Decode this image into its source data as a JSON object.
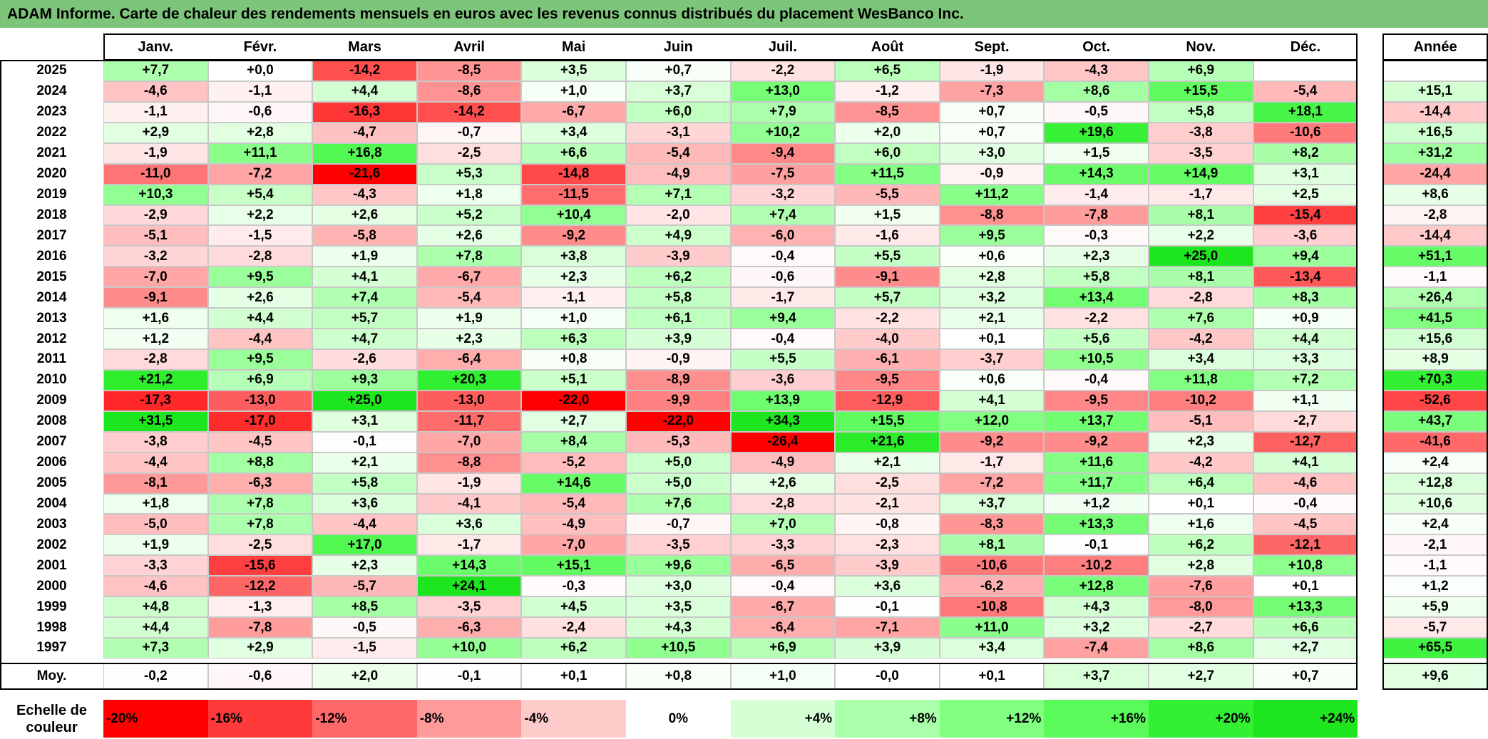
{
  "title": "ADAM Informe. Carte de chaleur des rendements mensuels en euros avec les revenus connus distribués du placement WesBanco Inc.",
  "chart_data": {
    "type": "heatmap",
    "title": "ADAM Informe. Carte de chaleur des rendements mensuels en euros avec les revenus connus distribués du placement WesBanco Inc.",
    "months": [
      "Janv.",
      "Févr.",
      "Mars",
      "Avril",
      "Mai",
      "Juin",
      "Juil.",
      "Août",
      "Sept.",
      "Oct.",
      "Nov.",
      "Déc."
    ],
    "annual_label": "Année",
    "rows": [
      {
        "year": "2025",
        "values": [
          "+7,7",
          "+0,0",
          "-14,2",
          "-8,5",
          "+3,5",
          "+0,7",
          "-2,2",
          "+6,5",
          "-1,9",
          "-4,3",
          "+6,9",
          ""
        ],
        "annual": ""
      },
      {
        "year": "2024",
        "values": [
          "-4,6",
          "-1,1",
          "+4,4",
          "-8,6",
          "+1,0",
          "+3,7",
          "+13,0",
          "-1,2",
          "-7,3",
          "+8,6",
          "+15,5",
          "-5,4"
        ],
        "annual": "+15,1"
      },
      {
        "year": "2023",
        "values": [
          "-1,1",
          "-0,6",
          "-16,3",
          "-14,2",
          "-6,7",
          "+6,0",
          "+7,9",
          "-8,5",
          "+0,7",
          "-0,5",
          "+5,8",
          "+18,1"
        ],
        "annual": "-14,4"
      },
      {
        "year": "2022",
        "values": [
          "+2,9",
          "+2,8",
          "-4,7",
          "-0,7",
          "+3,4",
          "-3,1",
          "+10,2",
          "+2,0",
          "+0,7",
          "+19,6",
          "-3,8",
          "-10,6"
        ],
        "annual": "+16,5"
      },
      {
        "year": "2021",
        "values": [
          "-1,9",
          "+11,1",
          "+16,8",
          "-2,5",
          "+6,6",
          "-5,4",
          "-9,4",
          "+6,0",
          "+3,0",
          "+1,5",
          "-3,5",
          "+8,2"
        ],
        "annual": "+31,2"
      },
      {
        "year": "2020",
        "values": [
          "-11,0",
          "-7,2",
          "-21,6",
          "+5,3",
          "-14,8",
          "-4,9",
          "-7,5",
          "+11,5",
          "-0,9",
          "+14,3",
          "+14,9",
          "+3,1"
        ],
        "annual": "-24,4"
      },
      {
        "year": "2019",
        "values": [
          "+10,3",
          "+5,4",
          "-4,3",
          "+1,8",
          "-11,5",
          "+7,1",
          "-3,2",
          "-5,5",
          "+11,2",
          "-1,4",
          "-1,7",
          "+2,5"
        ],
        "annual": "+8,6"
      },
      {
        "year": "2018",
        "values": [
          "-2,9",
          "+2,2",
          "+2,6",
          "+5,2",
          "+10,4",
          "-2,0",
          "+7,4",
          "+1,5",
          "-8,8",
          "-7,8",
          "+8,1",
          "-15,4"
        ],
        "annual": "-2,8"
      },
      {
        "year": "2017",
        "values": [
          "-5,1",
          "-1,5",
          "-5,8",
          "+2,6",
          "-9,2",
          "+4,9",
          "-6,0",
          "-1,6",
          "+9,5",
          "-0,3",
          "+2,2",
          "-3,6"
        ],
        "annual": "-14,4"
      },
      {
        "year": "2016",
        "values": [
          "-3,2",
          "-2,8",
          "+1,9",
          "+7,8",
          "+3,8",
          "-3,9",
          "-0,4",
          "+5,5",
          "+0,6",
          "+2,3",
          "+25,0",
          "+9,4"
        ],
        "annual": "+51,1"
      },
      {
        "year": "2015",
        "values": [
          "-7,0",
          "+9,5",
          "+4,1",
          "-6,7",
          "+2,3",
          "+6,2",
          "-0,6",
          "-9,1",
          "+2,8",
          "+5,8",
          "+8,1",
          "-13,4"
        ],
        "annual": "-1,1"
      },
      {
        "year": "2014",
        "values": [
          "-9,1",
          "+2,6",
          "+7,4",
          "-5,4",
          "-1,1",
          "+5,8",
          "-1,7",
          "+5,7",
          "+3,2",
          "+13,4",
          "-2,8",
          "+8,3"
        ],
        "annual": "+26,4"
      },
      {
        "year": "2013",
        "values": [
          "+1,6",
          "+4,4",
          "+5,7",
          "+1,9",
          "+1,0",
          "+6,1",
          "+9,4",
          "-2,2",
          "+2,1",
          "-2,2",
          "+7,6",
          "+0,9"
        ],
        "annual": "+41,5"
      },
      {
        "year": "2012",
        "values": [
          "+1,2",
          "-4,4",
          "+4,7",
          "+2,3",
          "+6,3",
          "+3,9",
          "-0,4",
          "-4,0",
          "+0,1",
          "+5,6",
          "-4,2",
          "+4,4"
        ],
        "annual": "+15,6"
      },
      {
        "year": "2011",
        "values": [
          "-2,8",
          "+9,5",
          "-2,6",
          "-6,4",
          "+0,8",
          "-0,9",
          "+5,5",
          "-6,1",
          "-3,7",
          "+10,5",
          "+3,4",
          "+3,3"
        ],
        "annual": "+8,9"
      },
      {
        "year": "2010",
        "values": [
          "+21,2",
          "+6,9",
          "+9,3",
          "+20,3",
          "+5,1",
          "-8,9",
          "-3,6",
          "-9,5",
          "+0,6",
          "-0,4",
          "+11,8",
          "+7,2"
        ],
        "annual": "+70,3"
      },
      {
        "year": "2009",
        "values": [
          "-17,3",
          "-13,0",
          "+25,0",
          "-13,0",
          "-22,0",
          "-9,9",
          "+13,9",
          "-12,9",
          "+4,1",
          "-9,5",
          "-10,2",
          "+1,1"
        ],
        "annual": "-52,6"
      },
      {
        "year": "2008",
        "values": [
          "+31,5",
          "-17,0",
          "+3,1",
          "-11,7",
          "+2,7",
          "-22,0",
          "+34,3",
          "+15,5",
          "+12,0",
          "+13,7",
          "-5,1",
          "-2,7"
        ],
        "annual": "+43,7"
      },
      {
        "year": "2007",
        "values": [
          "-3,8",
          "-4,5",
          "-0,1",
          "-7,0",
          "+8,4",
          "-5,3",
          "-26,4",
          "+21,6",
          "-9,2",
          "-9,2",
          "+2,3",
          "-12,7"
        ],
        "annual": "-41,6"
      },
      {
        "year": "2006",
        "values": [
          "-4,4",
          "+8,8",
          "+2,1",
          "-8,8",
          "-5,2",
          "+5,0",
          "-4,9",
          "+2,1",
          "-1,7",
          "+11,6",
          "-4,2",
          "+4,1"
        ],
        "annual": "+2,4"
      },
      {
        "year": "2005",
        "values": [
          "-8,1",
          "-6,3",
          "+5,8",
          "-1,9",
          "+14,6",
          "+5,0",
          "+2,6",
          "-2,5",
          "-7,2",
          "+11,7",
          "+6,4",
          "-4,6"
        ],
        "annual": "+12,8"
      },
      {
        "year": "2004",
        "values": [
          "+1,8",
          "+7,8",
          "+3,6",
          "-4,1",
          "-5,4",
          "+7,6",
          "-2,8",
          "-2,1",
          "+3,7",
          "+1,2",
          "+0,1",
          "-0,4"
        ],
        "annual": "+10,6"
      },
      {
        "year": "2003",
        "values": [
          "-5,0",
          "+7,8",
          "-4,4",
          "+3,6",
          "-4,9",
          "-0,7",
          "+7,0",
          "-0,8",
          "-8,3",
          "+13,3",
          "+1,6",
          "-4,5"
        ],
        "annual": "+2,4"
      },
      {
        "year": "2002",
        "values": [
          "+1,9",
          "-2,5",
          "+17,0",
          "-1,7",
          "-7,0",
          "-3,5",
          "-3,3",
          "-2,3",
          "+8,1",
          "-0,1",
          "+6,2",
          "-12,1"
        ],
        "annual": "-2,1"
      },
      {
        "year": "2001",
        "values": [
          "-3,3",
          "-15,6",
          "+2,3",
          "+14,3",
          "+15,1",
          "+9,6",
          "-6,5",
          "-3,9",
          "-10,6",
          "-10,2",
          "+2,8",
          "+10,8"
        ],
        "annual": "-1,1"
      },
      {
        "year": "2000",
        "values": [
          "-4,6",
          "-12,2",
          "-5,7",
          "+24,1",
          "-0,3",
          "+3,0",
          "-0,4",
          "+3,6",
          "-6,2",
          "+12,8",
          "-7,6",
          "+0,1"
        ],
        "annual": "+1,2"
      },
      {
        "year": "1999",
        "values": [
          "+4,8",
          "-1,3",
          "+8,5",
          "-3,5",
          "+4,5",
          "+3,5",
          "-6,7",
          "-0,1",
          "-10,8",
          "+4,3",
          "-8,0",
          "+13,3"
        ],
        "annual": "+5,9"
      },
      {
        "year": "1998",
        "values": [
          "+4,4",
          "-7,8",
          "-0,5",
          "-6,3",
          "-2,4",
          "+4,3",
          "-6,4",
          "-7,1",
          "+11,0",
          "+3,2",
          "-2,7",
          "+6,6"
        ],
        "annual": "-5,7"
      },
      {
        "year": "1997",
        "values": [
          "+7,3",
          "+2,9",
          "-1,5",
          "+10,0",
          "+6,2",
          "+10,5",
          "+6,9",
          "+3,9",
          "+3,4",
          "-7,4",
          "+8,6",
          "+2,7"
        ],
        "annual": "+65,5"
      }
    ],
    "average": {
      "label": "Moy.",
      "values": [
        "-0,2",
        "-0,6",
        "+2,0",
        "-0,1",
        "+0,1",
        "+0,8",
        "+1,0",
        "-0,0",
        "+0,1",
        "+3,7",
        "+2,7",
        "+0,7"
      ],
      "annual": "+9,6"
    },
    "color_scale": {
      "label": "Echelle de couleur",
      "stops": [
        {
          "label": "-20%",
          "color": "#ff0000"
        },
        {
          "label": "-16%",
          "color": "#ff3a3a"
        },
        {
          "label": "-12%",
          "color": "#ff6868"
        },
        {
          "label": "-8%",
          "color": "#ff9a9a"
        },
        {
          "label": "-4%",
          "color": "#ffcaca"
        },
        {
          "label": "0%",
          "color": "#ffffff"
        },
        {
          "label": "+4%",
          "color": "#d6ffd6"
        },
        {
          "label": "+8%",
          "color": "#aaffaa"
        },
        {
          "label": "+12%",
          "color": "#80ff80"
        },
        {
          "label": "+16%",
          "color": "#5afa5a"
        },
        {
          "label": "+20%",
          "color": "#33f033"
        },
        {
          "label": "+24%",
          "color": "#1ee61e"
        }
      ]
    }
  }
}
